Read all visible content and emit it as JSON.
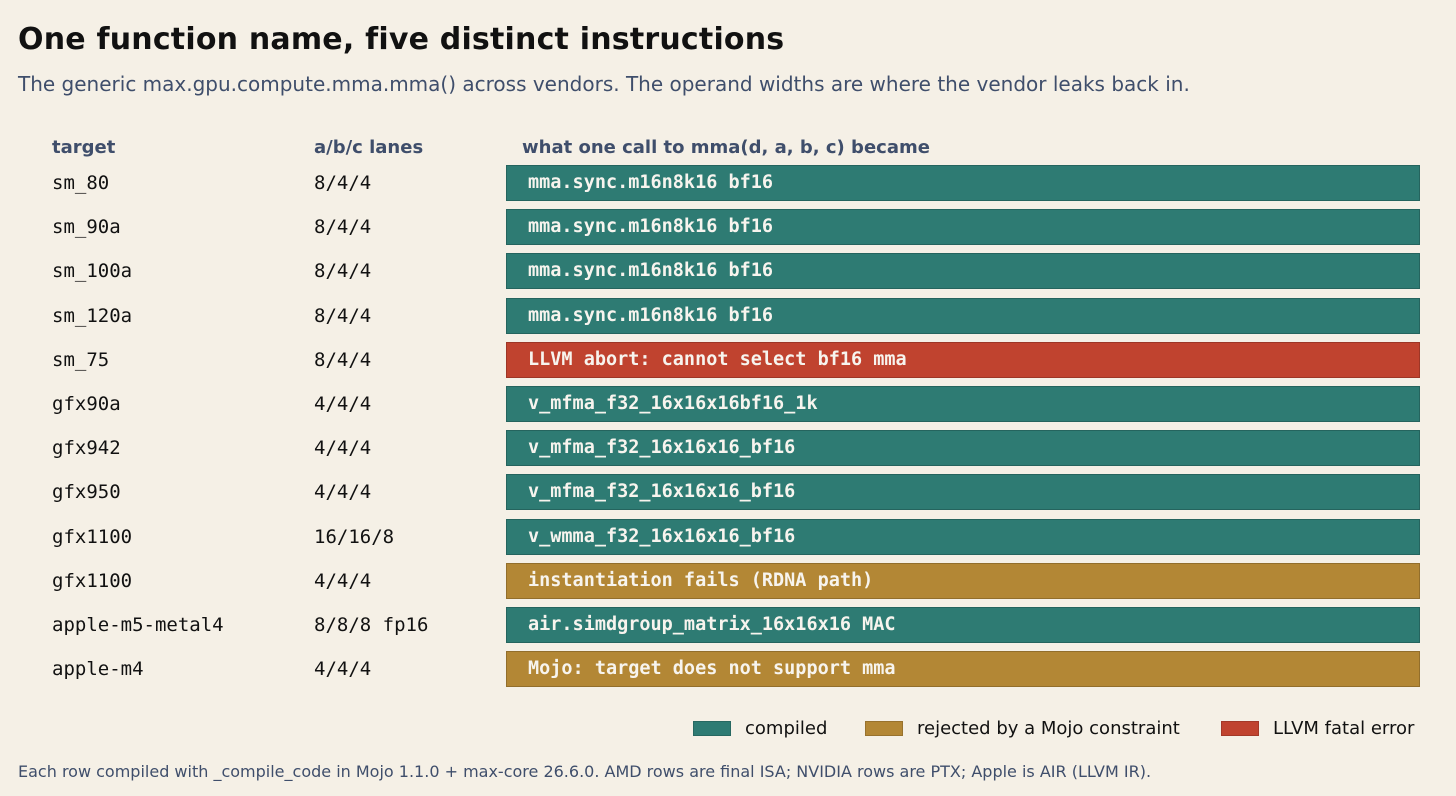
{
  "header": {
    "title": "One function name, five distinct instructions",
    "subtitle": "The generic max.gpu.compute.mma.mma() across vendors. The operand widths are where the vendor leaks back in."
  },
  "columns": {
    "target": "target",
    "lanes": "a/b/c lanes",
    "result": "what one call to mma(d, a, b, c) became"
  },
  "rows": [
    {
      "target": "sm_80",
      "lanes": "8/4/4",
      "result": "mma.sync.m16n8k16 bf16",
      "status": "compiled"
    },
    {
      "target": "sm_90a",
      "lanes": "8/4/4",
      "result": "mma.sync.m16n8k16 bf16",
      "status": "compiled"
    },
    {
      "target": "sm_100a",
      "lanes": "8/4/4",
      "result": "mma.sync.m16n8k16 bf16",
      "status": "compiled"
    },
    {
      "target": "sm_120a",
      "lanes": "8/4/4",
      "result": "mma.sync.m16n8k16 bf16",
      "status": "compiled"
    },
    {
      "target": "sm_75",
      "lanes": "8/4/4",
      "result": "LLVM abort: cannot select bf16 mma",
      "status": "llvm_error"
    },
    {
      "target": "gfx90a",
      "lanes": "4/4/4",
      "result": "v_mfma_f32_16x16x16bf16_1k",
      "status": "compiled"
    },
    {
      "target": "gfx942",
      "lanes": "4/4/4",
      "result": "v_mfma_f32_16x16x16_bf16",
      "status": "compiled"
    },
    {
      "target": "gfx950",
      "lanes": "4/4/4",
      "result": "v_mfma_f32_16x16x16_bf16",
      "status": "compiled"
    },
    {
      "target": "gfx1100",
      "lanes": "16/16/8",
      "result": "v_wmma_f32_16x16x16_bf16",
      "status": "compiled"
    },
    {
      "target": "gfx1100",
      "lanes": "4/4/4",
      "result": "instantiation fails (RDNA path)",
      "status": "rejected"
    },
    {
      "target": "apple-m5-metal4",
      "lanes": "8/8/8 fp16",
      "result": "air.simdgroup_matrix_16x16x16 MAC",
      "status": "compiled"
    },
    {
      "target": "apple-m4",
      "lanes": "4/4/4",
      "result": "Mojo: target does not support mma",
      "status": "rejected"
    }
  ],
  "legend": [
    {
      "key": "compiled",
      "label": "compiled"
    },
    {
      "key": "rejected",
      "label": "rejected by a Mojo constraint"
    },
    {
      "key": "llvm_error",
      "label": "LLVM fatal error"
    }
  ],
  "colors": {
    "compiled": "#2e7b73",
    "rejected": "#b38735",
    "llvm_error": "#c0432f"
  },
  "footnote": "Each row compiled with _compile_code in Mojo 1.1.0 + max-core 26.6.0. AMD rows are final ISA; NVIDIA rows are PTX; Apple is AIR (LLVM IR)."
}
